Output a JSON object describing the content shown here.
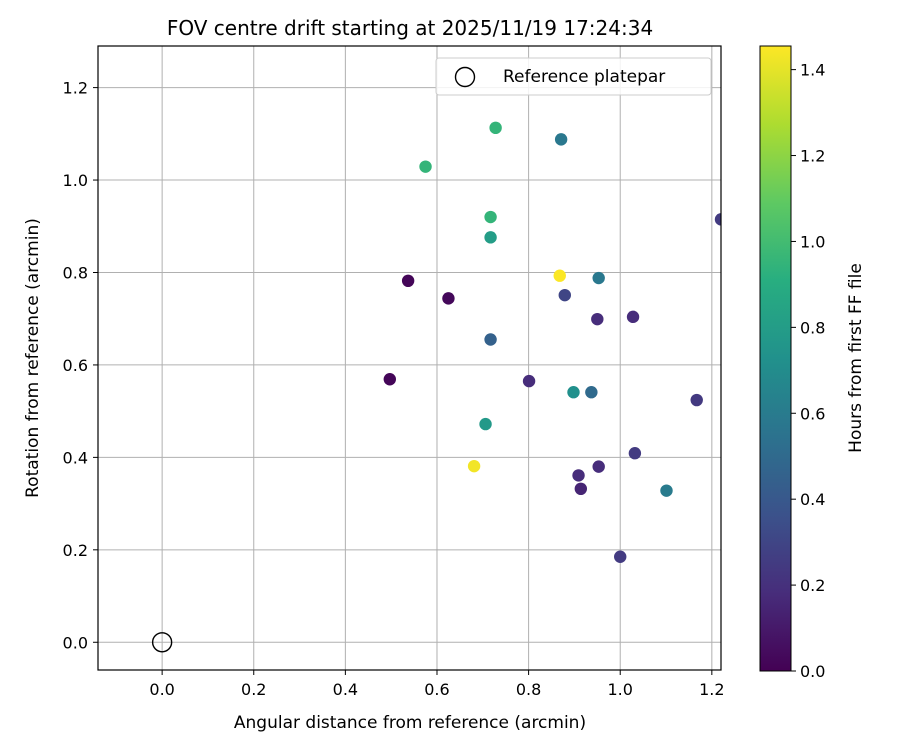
{
  "chart_data": {
    "type": "scatter",
    "title": "FOV centre drift starting at 2025/11/19 17:24:34",
    "xlabel": "Angular distance from reference (arcmin)",
    "ylabel": "Rotation from reference (arcmin)",
    "xlim": [
      -0.14,
      1.22
    ],
    "ylim": [
      -0.06,
      1.29
    ],
    "xticks": [
      0.0,
      0.2,
      0.4,
      0.6,
      0.8,
      1.0,
      1.2
    ],
    "yticks": [
      0.0,
      0.2,
      0.4,
      0.6,
      0.8,
      1.0,
      1.2
    ],
    "grid": true,
    "legend": {
      "position": "top-right",
      "entries": [
        "Reference platepar"
      ]
    },
    "reference_point": {
      "x": 0.0,
      "y": 0.0,
      "label": "Reference platepar"
    },
    "colorbar": {
      "label": "Hours from first FF file",
      "colormap": "viridis",
      "range": [
        0.0,
        1.455
      ],
      "ticks": [
        0.0,
        0.2,
        0.4,
        0.6,
        0.8,
        1.0,
        1.2,
        1.4
      ]
    },
    "points": [
      {
        "x": 0.728,
        "y": 1.113,
        "c": 0.95
      },
      {
        "x": 0.871,
        "y": 1.088,
        "c": 0.58
      },
      {
        "x": 0.575,
        "y": 1.029,
        "c": 0.95
      },
      {
        "x": 0.717,
        "y": 0.92,
        "c": 0.95
      },
      {
        "x": 0.717,
        "y": 0.876,
        "c": 0.8
      },
      {
        "x": 1.22,
        "y": 0.915,
        "c": 0.25
      },
      {
        "x": 0.868,
        "y": 0.793,
        "c": 1.45
      },
      {
        "x": 0.953,
        "y": 0.788,
        "c": 0.58
      },
      {
        "x": 0.537,
        "y": 0.782,
        "c": 0.02
      },
      {
        "x": 0.625,
        "y": 0.744,
        "c": 0.03
      },
      {
        "x": 0.879,
        "y": 0.751,
        "c": 0.3
      },
      {
        "x": 0.95,
        "y": 0.699,
        "c": 0.18
      },
      {
        "x": 1.028,
        "y": 0.704,
        "c": 0.18
      },
      {
        "x": 0.717,
        "y": 0.655,
        "c": 0.45
      },
      {
        "x": 0.497,
        "y": 0.569,
        "c": 0.02
      },
      {
        "x": 0.801,
        "y": 0.565,
        "c": 0.18
      },
      {
        "x": 0.898,
        "y": 0.541,
        "c": 0.72
      },
      {
        "x": 0.937,
        "y": 0.541,
        "c": 0.5
      },
      {
        "x": 1.167,
        "y": 0.524,
        "c": 0.24
      },
      {
        "x": 0.706,
        "y": 0.472,
        "c": 0.78
      },
      {
        "x": 1.032,
        "y": 0.409,
        "c": 0.25
      },
      {
        "x": 0.681,
        "y": 0.381,
        "c": 1.43
      },
      {
        "x": 0.953,
        "y": 0.38,
        "c": 0.18
      },
      {
        "x": 0.909,
        "y": 0.361,
        "c": 0.18
      },
      {
        "x": 0.914,
        "y": 0.332,
        "c": 0.15
      },
      {
        "x": 1.101,
        "y": 0.328,
        "c": 0.6
      },
      {
        "x": 1.0,
        "y": 0.185,
        "c": 0.25
      }
    ]
  }
}
